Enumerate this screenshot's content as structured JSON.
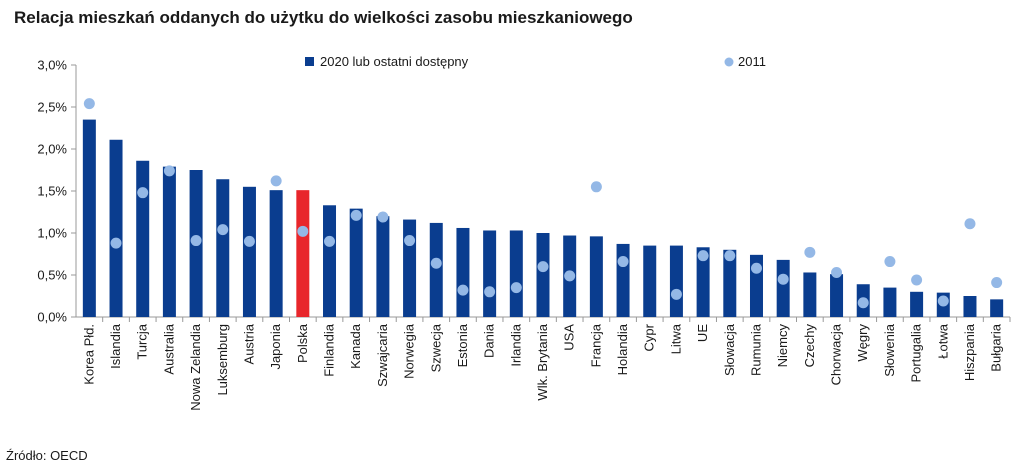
{
  "title": "Relacja mieszkań oddanych do użytku do wielkości zasobu mieszkaniowego",
  "source": "Źródło: OECD",
  "colors": {
    "bar": "#0a3d8f",
    "bar_highlight": "#e8262b",
    "dot": "#94b8e6",
    "axis": "#999999"
  },
  "legend": {
    "bar_label": "2020 lub ostatni dostępny",
    "dot_label": "2011"
  },
  "chart_data": {
    "type": "bar",
    "title": "Relacja mieszkań oddanych do użytku do wielkości zasobu mieszkaniowego",
    "categories": [
      "Korea Płd.",
      "Islandia",
      "Turcja",
      "Australia",
      "Nowa Zelandia",
      "Luksemburg",
      "Austria",
      "Japonia",
      "Polska",
      "Finlandia",
      "Kanada",
      "Szwajcaria",
      "Norwegia",
      "Szwecja",
      "Estonia",
      "Dania",
      "Irlandia",
      "Wlk. Brytania",
      "USA",
      "Francja",
      "Holandia",
      "Cypr",
      "Litwa",
      "UE",
      "Słowacja",
      "Rumunia",
      "Niemcy",
      "Czechy",
      "Chorwacja",
      "Węgry",
      "Słowenia",
      "Portugalia",
      "Łotwa",
      "Hiszpania",
      "Bułgaria"
    ],
    "highlight_category": "Polska",
    "series": [
      {
        "name": "2020 lub ostatni dostępny",
        "kind": "bar",
        "values": [
          2.35,
          2.11,
          1.86,
          1.79,
          1.75,
          1.64,
          1.55,
          1.51,
          1.51,
          1.33,
          1.29,
          1.2,
          1.16,
          1.12,
          1.06,
          1.03,
          1.03,
          1.0,
          0.97,
          0.96,
          0.87,
          0.85,
          0.85,
          0.83,
          0.8,
          0.74,
          0.68,
          0.53,
          0.51,
          0.39,
          0.35,
          0.3,
          0.29,
          0.25,
          0.21
        ]
      },
      {
        "name": "2011",
        "kind": "dot",
        "values": [
          2.54,
          0.88,
          1.48,
          1.74,
          0.91,
          1.04,
          0.9,
          1.62,
          1.02,
          0.9,
          1.21,
          1.19,
          0.91,
          0.64,
          0.32,
          0.3,
          0.35,
          0.6,
          0.49,
          1.55,
          0.66,
          null,
          0.27,
          0.73,
          0.73,
          0.58,
          0.45,
          0.77,
          0.53,
          0.17,
          0.66,
          0.44,
          0.19,
          1.11,
          0.41
        ]
      }
    ],
    "y_ticks": [
      "0,0%",
      "0,5%",
      "1,0%",
      "1,5%",
      "2,0%",
      "2,5%",
      "3,0%"
    ],
    "ylim": [
      0,
      3.0
    ],
    "ylabel": "",
    "xlabel": "",
    "grid": false,
    "legend_position": "top"
  }
}
